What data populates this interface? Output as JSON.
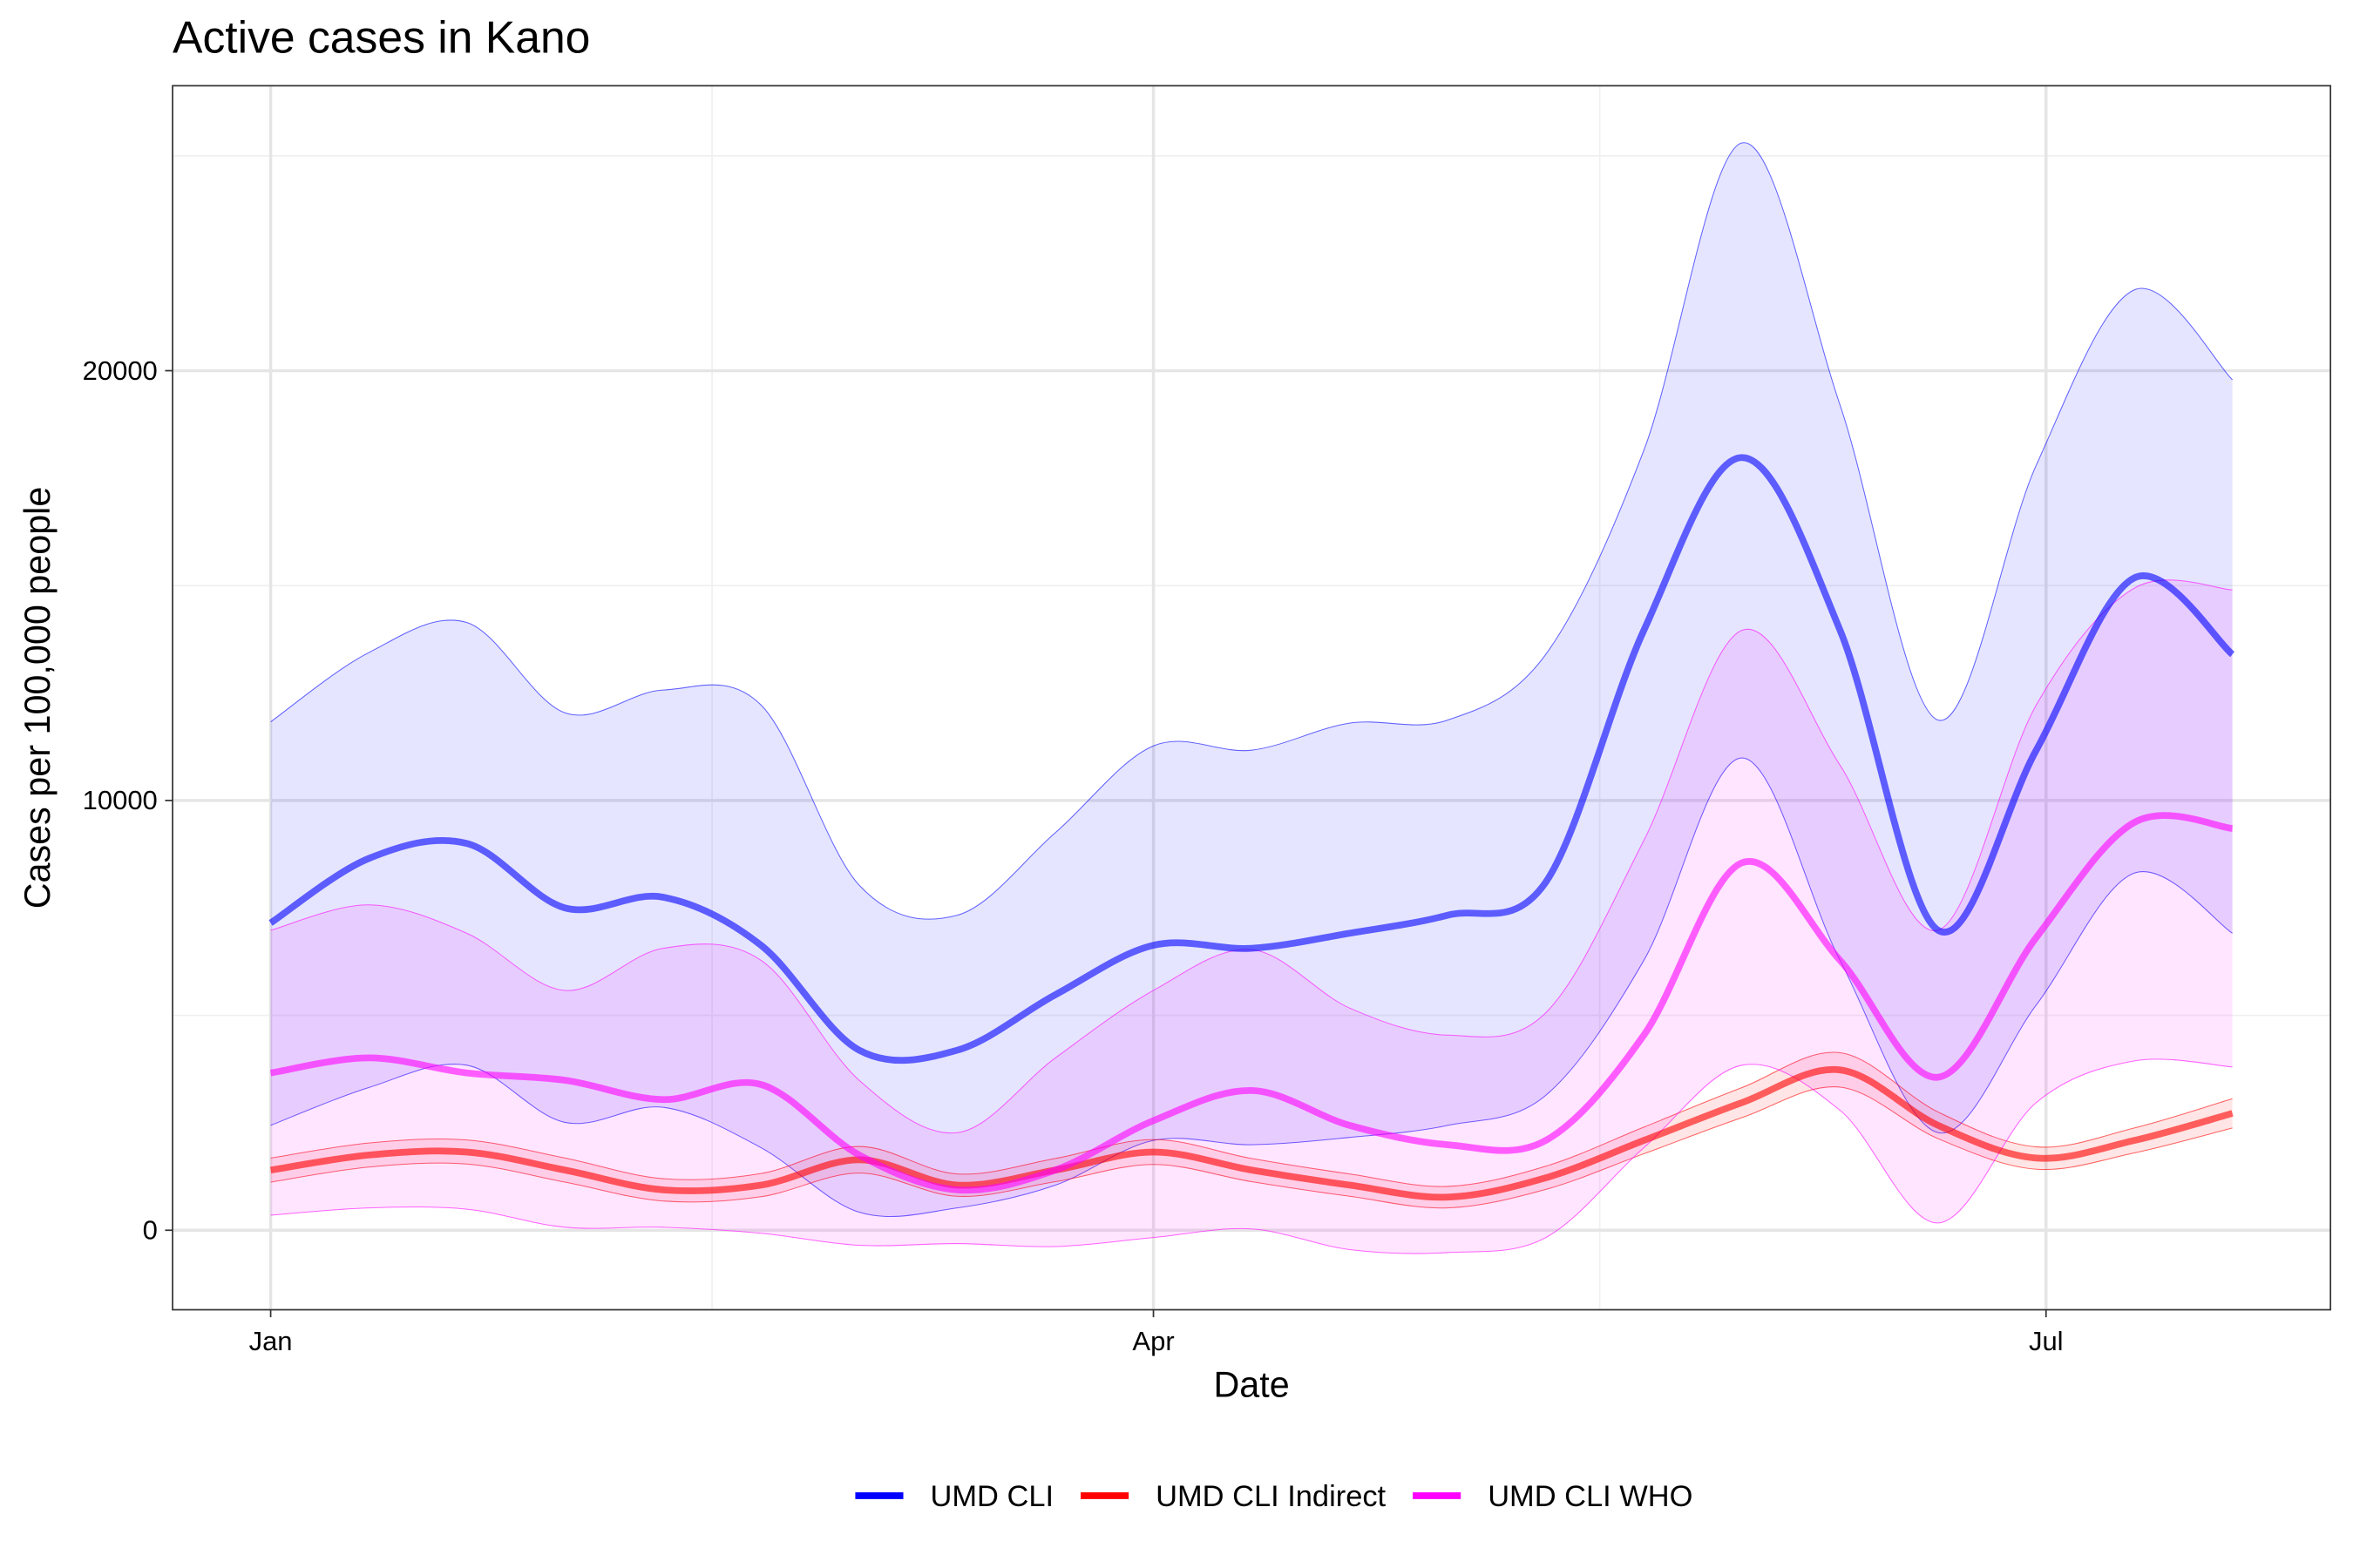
{
  "chart_data": {
    "type": "line",
    "title": "Active cases in Kano",
    "x_label": "Date",
    "y_label": "Cases per 100,000 people",
    "x": [
      0,
      10,
      20,
      30,
      40,
      50,
      60,
      70,
      80,
      90,
      100,
      110,
      120,
      130,
      140,
      150,
      160,
      170,
      180,
      190,
      200
    ],
    "xlim": [
      -10,
      210
    ],
    "xticks": [
      {
        "value": 0,
        "label": "Jan"
      },
      {
        "value": 90,
        "label": "Apr"
      },
      {
        "value": 181,
        "label": "Jul"
      }
    ],
    "xminor_ticks": [
      45,
      135.5
    ],
    "ylim": [
      -1850,
      26630
    ],
    "yticks": [
      0,
      10000,
      20000
    ],
    "yminor_ticks": [
      5000,
      15000,
      25000
    ],
    "grid": true,
    "legend_position": "bottom",
    "series": [
      {
        "name": "UMD CLI",
        "color": "#0000ff",
        "values": [
          7150,
          8650,
          9000,
          7500,
          7750,
          6630,
          4190,
          4190,
          5480,
          6630,
          6560,
          6910,
          7330,
          8100,
          13960,
          17980,
          13960,
          6980,
          11170,
          15180,
          13400
        ],
        "lower": [
          2440,
          3320,
          3840,
          2510,
          2860,
          1920,
          420,
          520,
          1050,
          2090,
          1990,
          2160,
          2440,
          3140,
          6280,
          10990,
          6280,
          2270,
          5240,
          8310,
          6910
        ],
        "upper": [
          11830,
          13440,
          14140,
          12040,
          12570,
          12220,
          8030,
          7330,
          9250,
          11270,
          11170,
          11800,
          11870,
          13400,
          18150,
          25300,
          19200,
          11870,
          17800,
          21880,
          19790
        ]
      },
      {
        "name": "UMD CLI Indirect",
        "color": "#ff0000",
        "values": [
          1400,
          1750,
          1820,
          1400,
          940,
          1050,
          1640,
          1050,
          1400,
          1820,
          1400,
          1050,
          770,
          1220,
          2090,
          2970,
          3730,
          2440,
          1680,
          2090,
          2720
        ],
        "lower": [
          1120,
          1470,
          1540,
          1120,
          680,
          780,
          1330,
          790,
          1130,
          1530,
          1130,
          790,
          520,
          950,
          1780,
          2620,
          3330,
          2130,
          1420,
          1800,
          2380
        ],
        "upper": [
          1680,
          2030,
          2100,
          1680,
          1200,
          1320,
          1950,
          1310,
          1670,
          2110,
          1670,
          1310,
          1020,
          1490,
          2400,
          3320,
          4130,
          2750,
          1940,
          2380,
          3060
        ]
      },
      {
        "name": "UMD CLI WHO",
        "color": "#ff00ff",
        "values": [
          3660,
          4010,
          3660,
          3490,
          3040,
          3390,
          1750,
          940,
          1400,
          2550,
          3250,
          2440,
          1990,
          2090,
          4540,
          8550,
          6280,
          3560,
          6810,
          9490,
          9350
        ],
        "lower": [
          350,
          520,
          490,
          70,
          70,
          -70,
          -350,
          -310,
          -380,
          -170,
          30,
          -450,
          -520,
          -170,
          1920,
          3840,
          2790,
          170,
          2970,
          3940,
          3800
        ],
        "upper": [
          6980,
          7570,
          6910,
          5580,
          6560,
          6280,
          3490,
          2270,
          4010,
          5580,
          6530,
          5170,
          4540,
          5060,
          9070,
          13960,
          10820,
          6980,
          12220,
          14940,
          14900
        ]
      }
    ]
  }
}
